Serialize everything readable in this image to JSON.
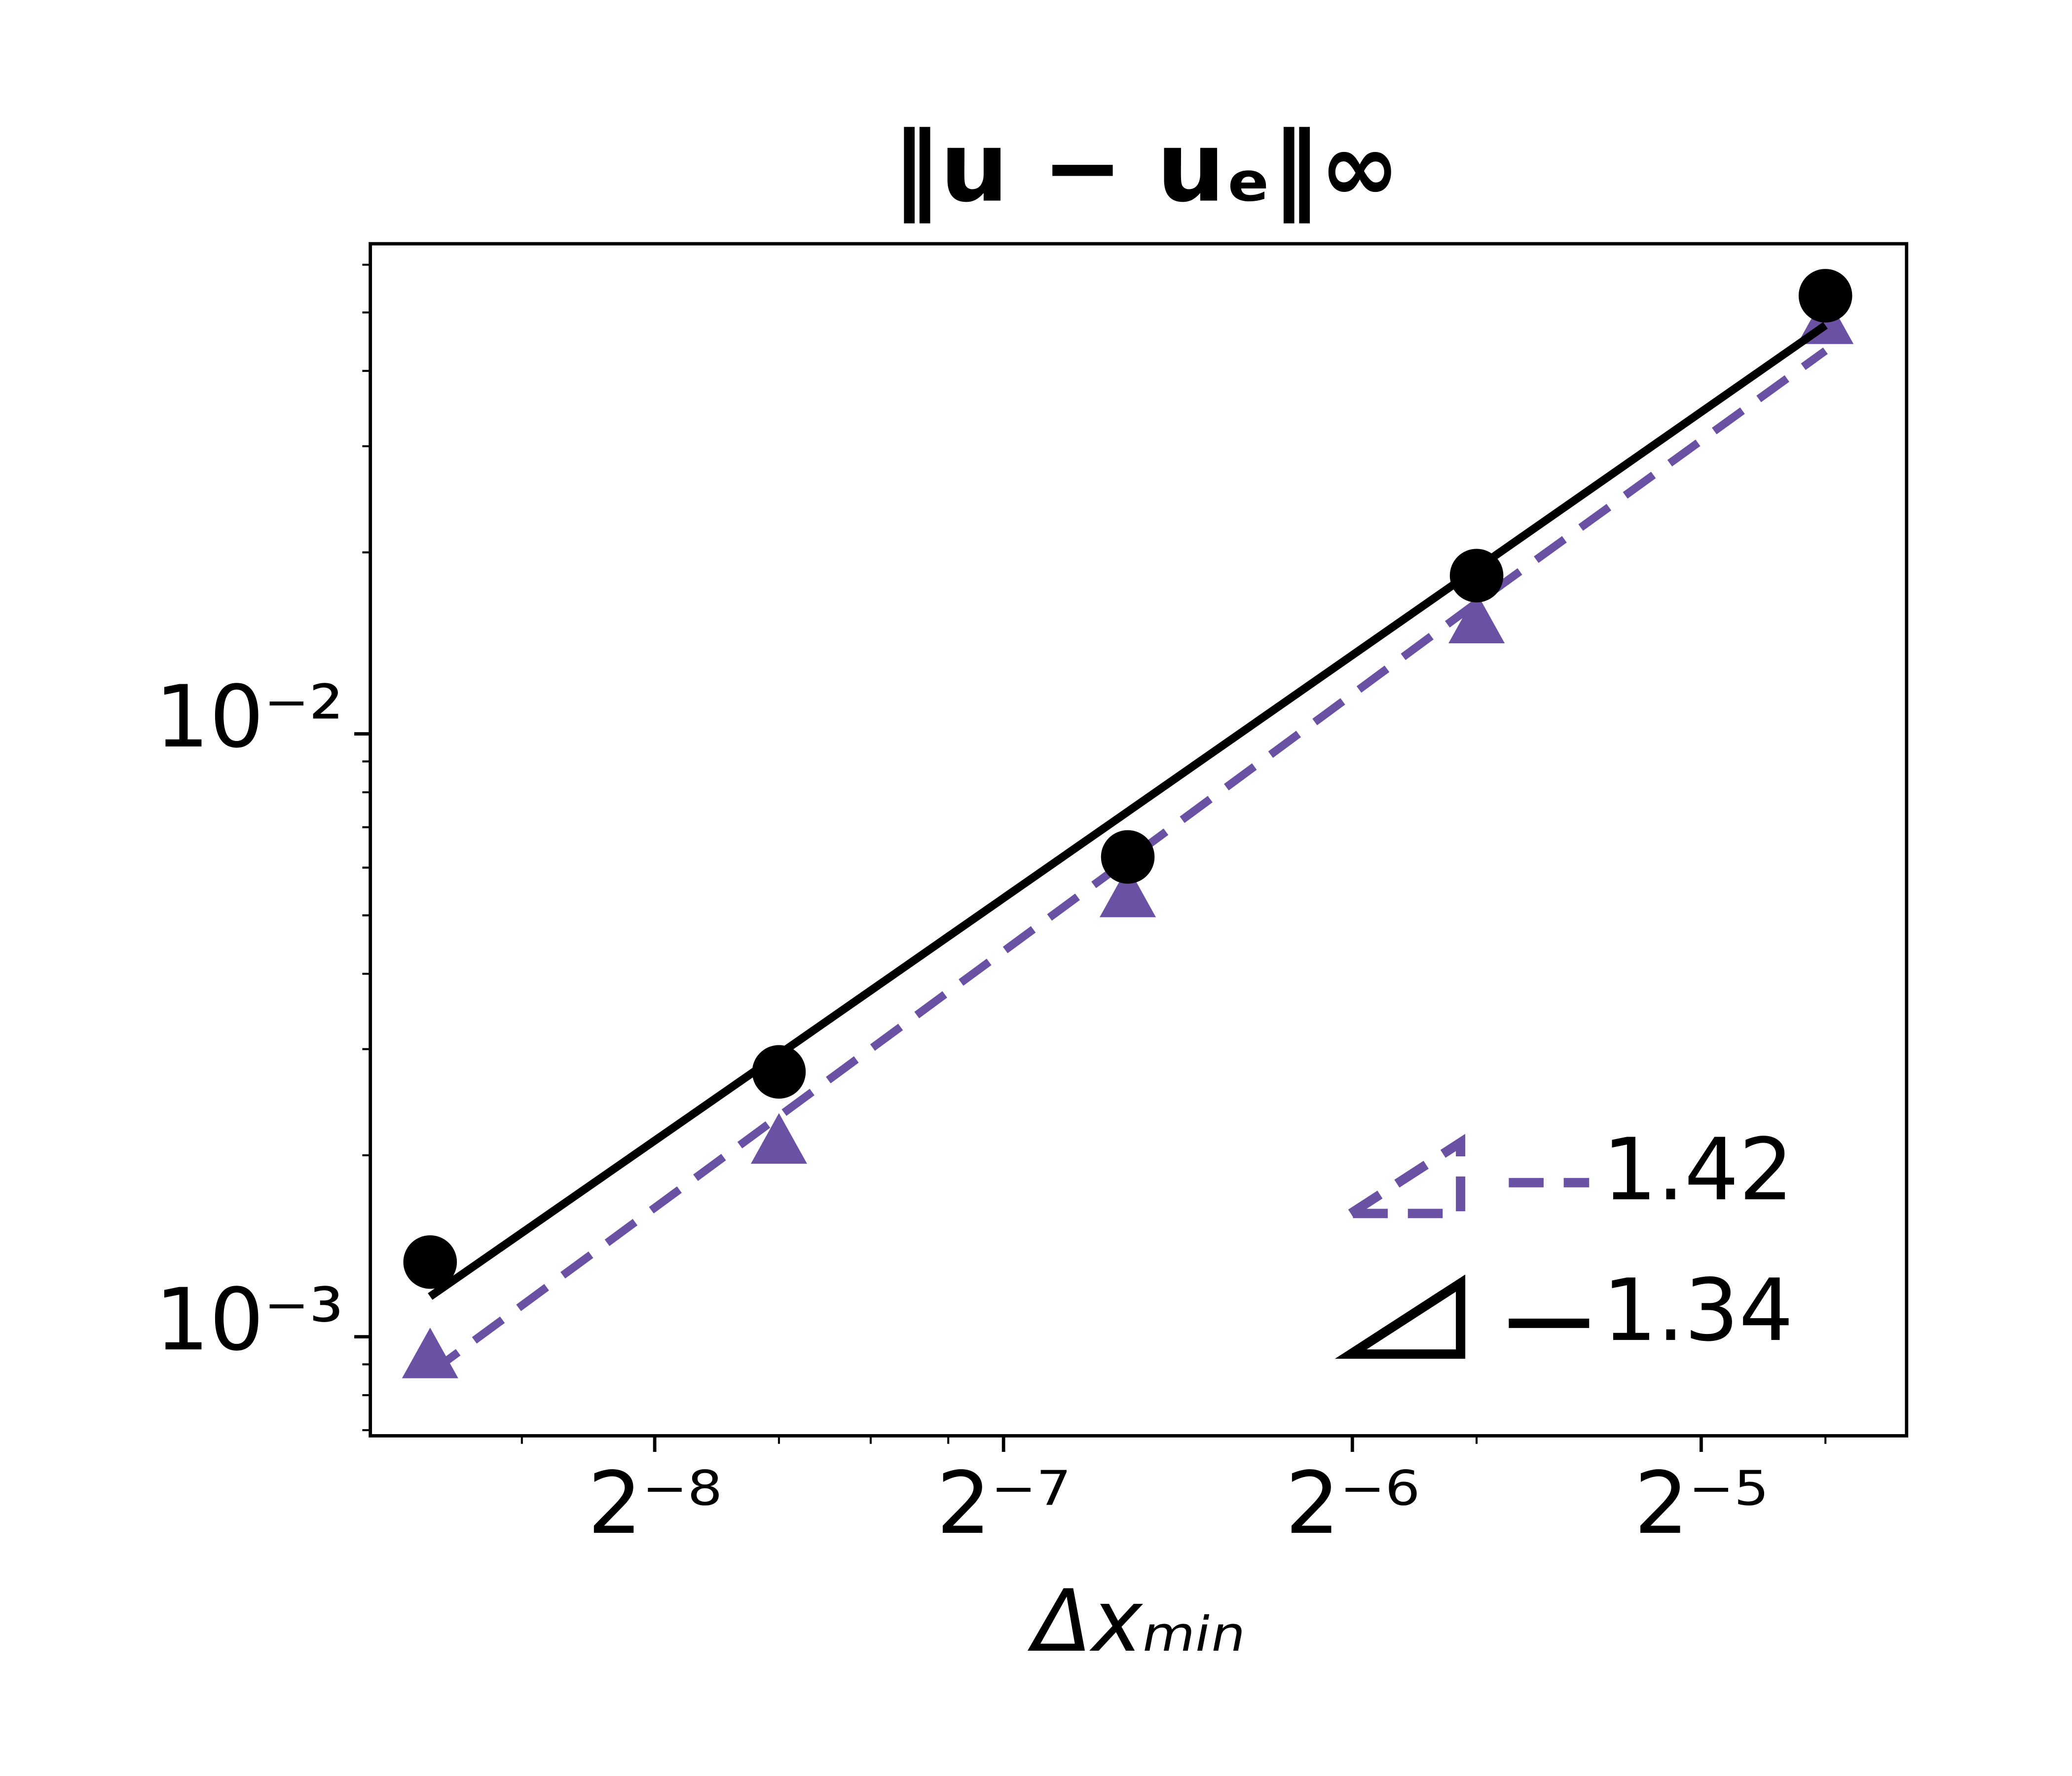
{
  "chart_data": {
    "type": "line",
    "title": "‖u − uₑ‖∞",
    "x_label": "Δxₘᵢₙ",
    "x_scale": "log2",
    "y_scale": "log10",
    "x": [
      0.0025,
      0.005,
      0.01,
      0.02,
      0.04
    ],
    "series": [
      {
        "name": "1.42",
        "color": "#6a51a3",
        "marker": "triangle",
        "dash": true,
        "values": [
          0.00093,
          0.00211,
          0.00541,
          0.0154,
          0.0483
        ],
        "fit": [
          0.000871,
          0.00232,
          0.00618,
          0.0165,
          0.0432
        ]
      },
      {
        "name": "1.34",
        "color": "#000000",
        "marker": "circle",
        "dash": false,
        "values": [
          0.00133,
          0.00275,
          0.00625,
          0.0183,
          0.0533
        ],
        "fit": [
          0.001166,
          0.00294,
          0.00743,
          0.0188,
          0.0476
        ]
      }
    ],
    "xlim": [
      0.00222,
      0.047
    ],
    "ylim": [
      0.000685,
      0.065
    ],
    "xticks": [
      {
        "value": 0.00390625,
        "label": "2⁻⁸"
      },
      {
        "value": 0.0078125,
        "label": "2⁻⁷"
      },
      {
        "value": 0.015625,
        "label": "2⁻⁶"
      },
      {
        "value": 0.03125,
        "label": "2⁻⁵"
      }
    ],
    "yticks": [
      {
        "value": 0.001,
        "label": "10⁻³"
      },
      {
        "value": 0.01,
        "label": "10⁻²"
      }
    ],
    "xminorticks": [
      0.003,
      0.005,
      0.006,
      0.007,
      0.02,
      0.04
    ],
    "yminorticks": [
      0.0007,
      0.0008,
      0.0009,
      0.002,
      0.003,
      0.004,
      0.005,
      0.006,
      0.007,
      0.008,
      0.009,
      0.02,
      0.03,
      0.04,
      0.05,
      0.06
    ],
    "legend": "lower right",
    "grid": false
  }
}
